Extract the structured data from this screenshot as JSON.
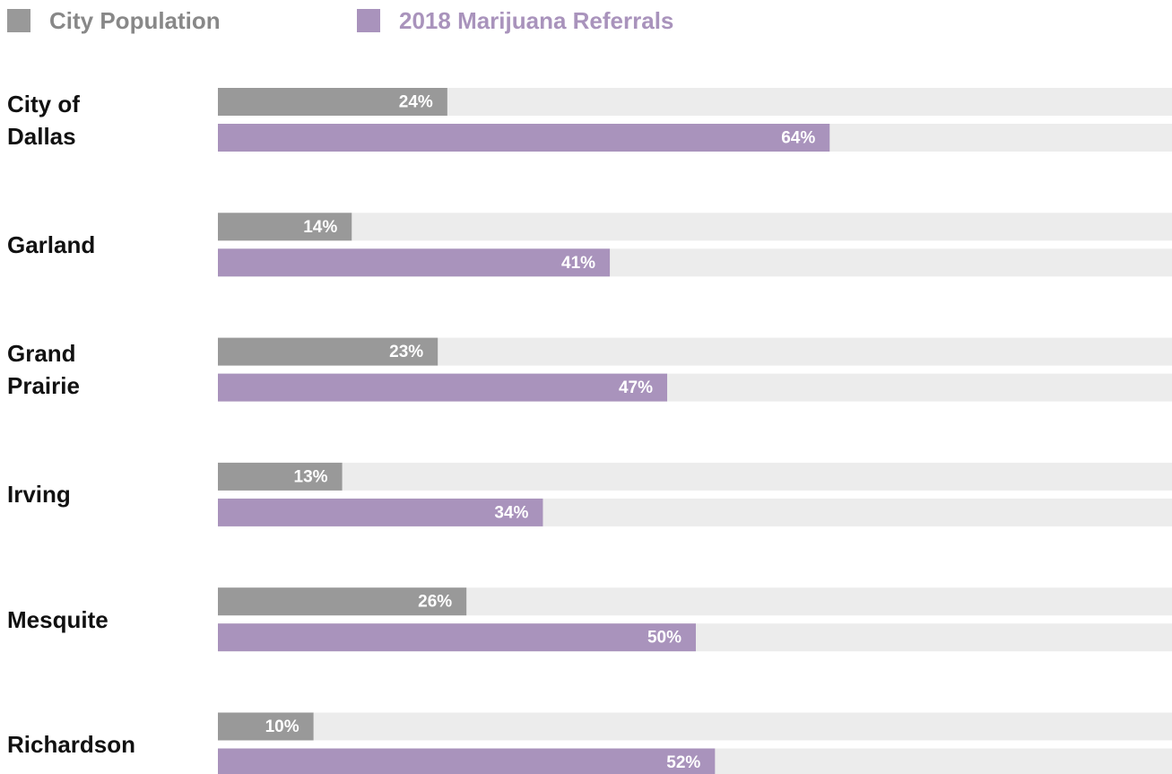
{
  "chart_data": {
    "type": "bar",
    "orientation": "horizontal",
    "categories": [
      "City of Dallas",
      "Garland",
      "Grand Prairie",
      "Irving",
      "Mesquite",
      "Richardson"
    ],
    "series": [
      {
        "name": "City Population",
        "color": "#999999",
        "values": [
          24,
          14,
          23,
          13,
          26,
          10
        ],
        "value_labels": [
          "24%",
          "14%",
          "23%",
          "13%",
          "26%",
          "10%"
        ]
      },
      {
        "name": "2018 Marijuana Referrals",
        "color": "#a993bc",
        "values": [
          64,
          41,
          47,
          34,
          50,
          52
        ],
        "value_labels": [
          "64%",
          "41%",
          "47%",
          "34%",
          "50%",
          "52%"
        ]
      }
    ],
    "xlim": [
      0,
      100
    ],
    "track_color": "#ececec"
  }
}
